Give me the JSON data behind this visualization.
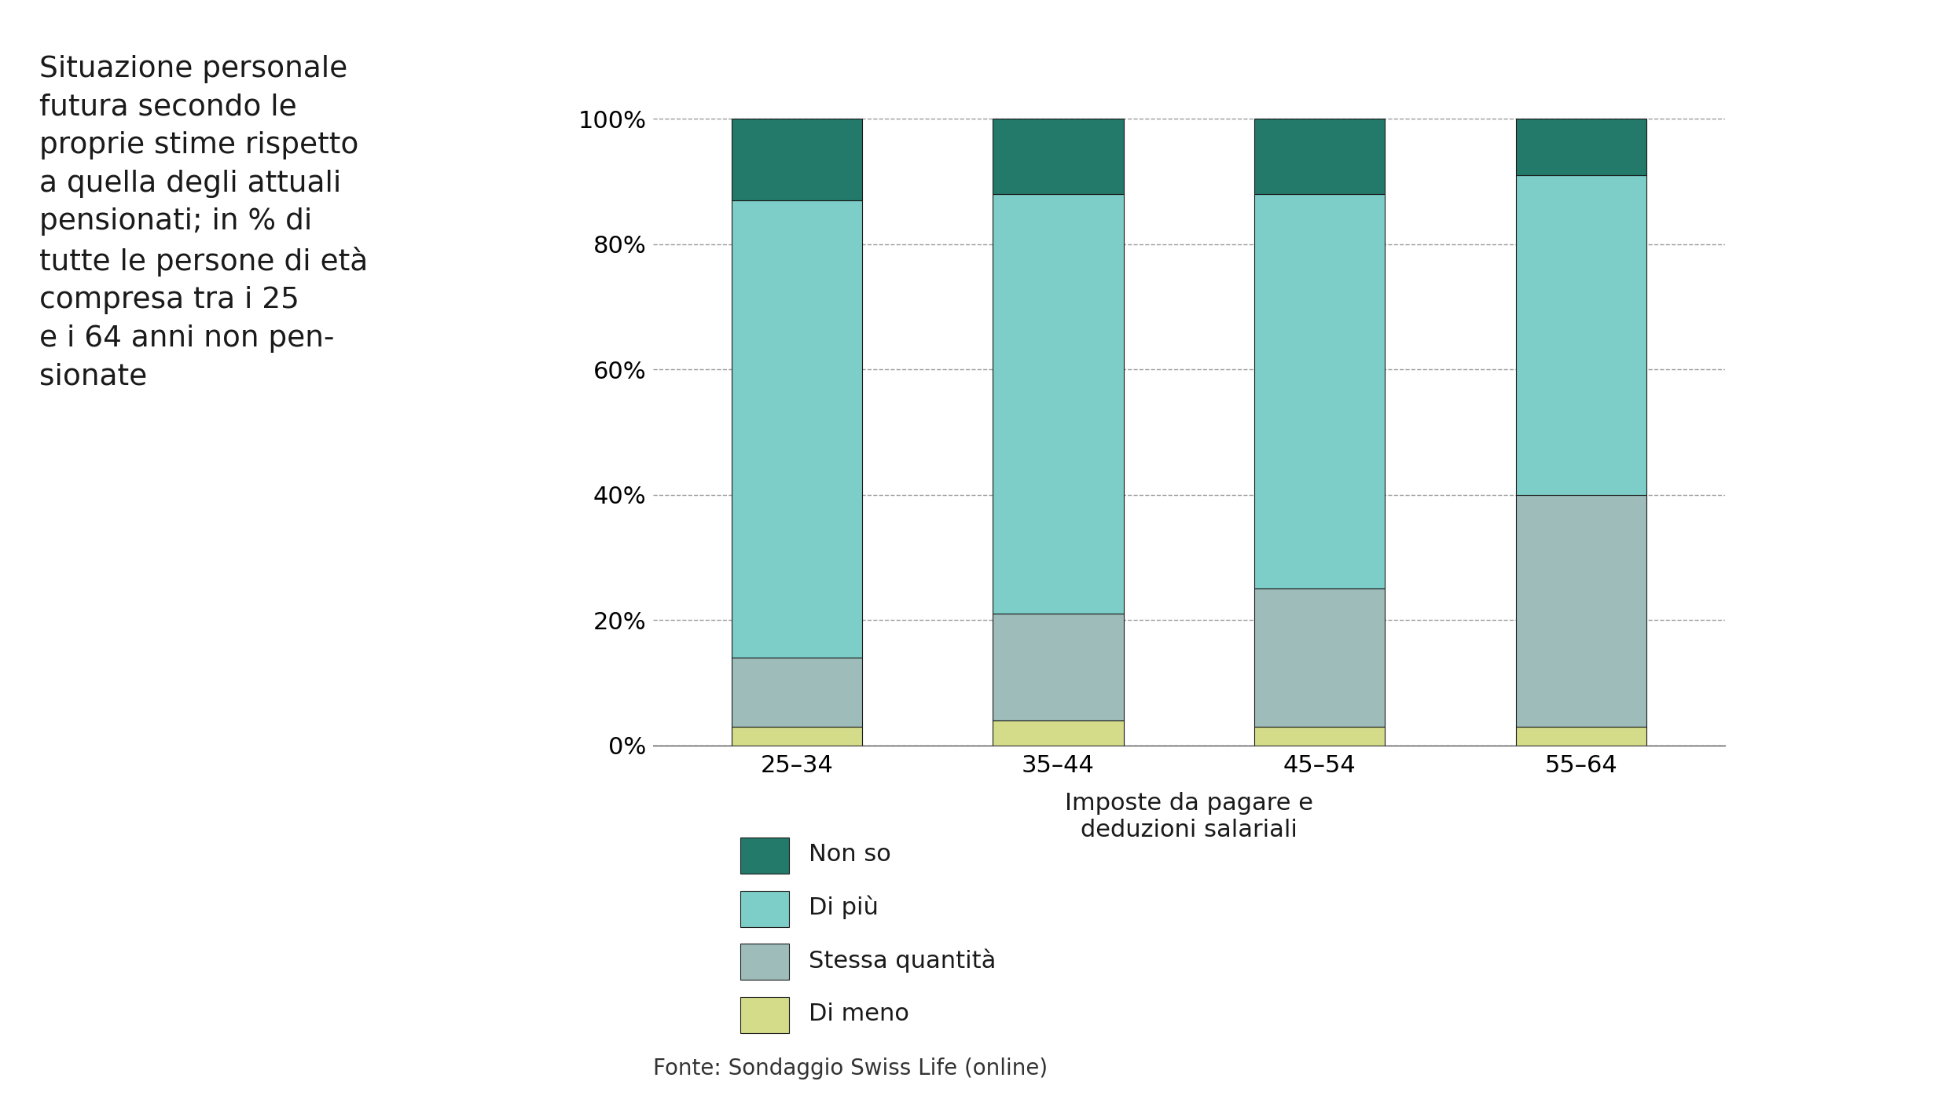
{
  "categories": [
    "25–34",
    "35–44",
    "45–54",
    "55–64"
  ],
  "segments": {
    "Di meno": [
      3,
      4,
      3,
      3
    ],
    "Stessa quantità": [
      11,
      17,
      22,
      37
    ],
    "Di più": [
      73,
      67,
      63,
      51
    ],
    "Non so": [
      13,
      12,
      12,
      9
    ]
  },
  "colors": {
    "Di meno": "#d4dc8a",
    "Stessa quantità": "#9dbcba",
    "Di più": "#7dcdc8",
    "Non so": "#237a6a"
  },
  "legend_order": [
    "Non so",
    "Di più",
    "Stessa quantità",
    "Di meno"
  ],
  "xlabel": "Imposte da pagare e\ndeduzioni salariali",
  "yticks": [
    0,
    20,
    40,
    60,
    80,
    100
  ],
  "ytick_labels": [
    "0%",
    "20%",
    "40%",
    "60%",
    "80%",
    "100%"
  ],
  "title_text": "Situazione personale\nfutura secondo le\nproprie stime rispetto\na quella degli attuali\npensionati; in % di\ntutte le persone di età\ncompresa tra i 25\ne i 64 anni non pen-\nsionate",
  "footnote": "Fonte: Sondaggio Swiss Life (online)",
  "background_color": "#ffffff",
  "bar_width": 0.5,
  "bar_edge_color": "#1a1a1a",
  "bar_edge_width": 0.8,
  "grid_color": "#999999",
  "grid_linestyle": "--",
  "grid_linewidth": 1.0
}
